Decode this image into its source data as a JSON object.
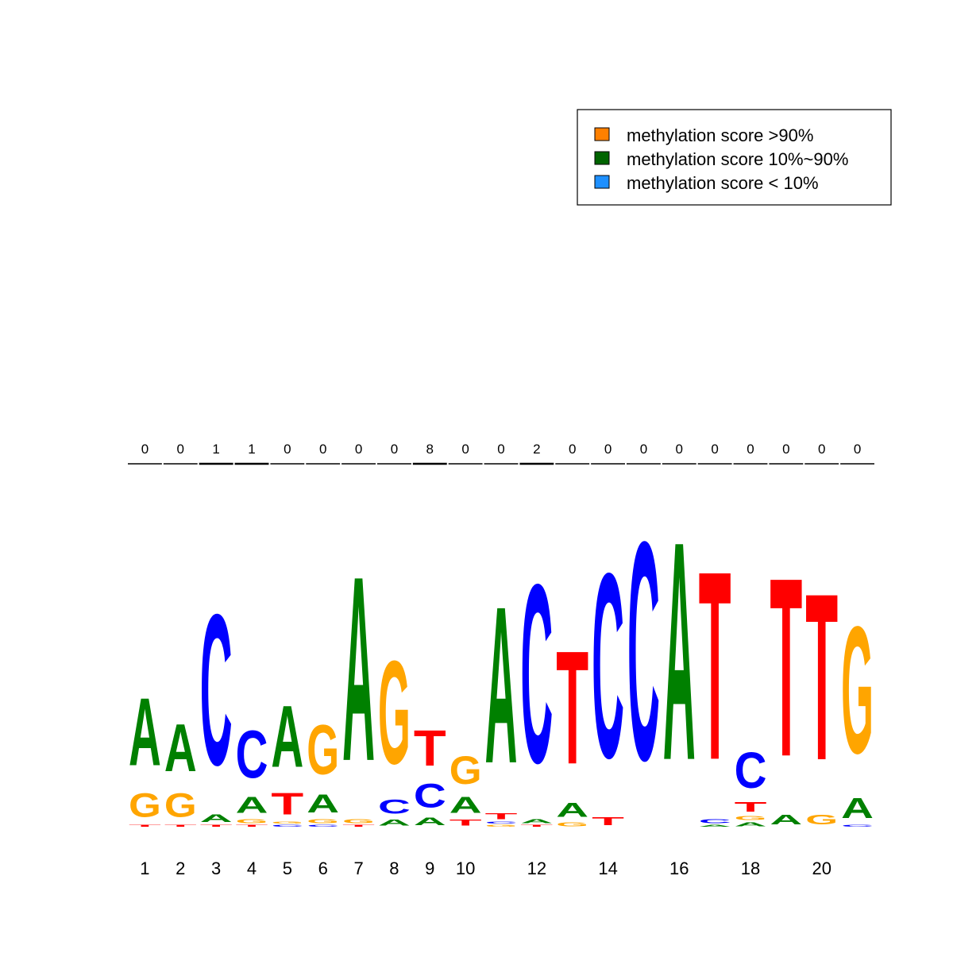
{
  "legend": {
    "items": [
      {
        "label": "methylation score >90%",
        "color": "#ff8000"
      },
      {
        "label": "methylation score 10%~90%",
        "color": "#006400"
      },
      {
        "label": "methylation score < 10%",
        "color": "#1e90ff"
      }
    ]
  },
  "letter_colors": {
    "A": "#008000",
    "C": "#0000ff",
    "G": "#ffa500",
    "T": "#ff0000"
  },
  "chart_data": {
    "type": "sequence-logo",
    "title": "",
    "xlabel": "",
    "ylabel": "",
    "x_tick_labels": [
      "1",
      "2",
      "3",
      "4",
      "5",
      "6",
      "7",
      "8",
      "9",
      "10",
      "",
      "12",
      "",
      "14",
      "",
      "16",
      "",
      "18",
      "",
      "20",
      ""
    ],
    "methylation_counts": [
      "0",
      "0",
      "1",
      "1",
      "0",
      "0",
      "0",
      "0",
      "8",
      "0",
      "0",
      "2",
      "0",
      "0",
      "0",
      "0",
      "0",
      "0",
      "0",
      "0",
      "0"
    ],
    "positions": [
      [
        {
          "letter": "T",
          "height": 0.01
        },
        {
          "letter": "G",
          "height": 0.12
        },
        {
          "letter": "A",
          "height": 0.34
        }
      ],
      [
        {
          "letter": "T",
          "height": 0.01
        },
        {
          "letter": "G",
          "height": 0.12
        },
        {
          "letter": "A",
          "height": 0.24
        }
      ],
      [
        {
          "letter": "T",
          "height": 0.01
        },
        {
          "letter": "A",
          "height": 0.04
        },
        {
          "letter": "C",
          "height": 0.76
        }
      ],
      [
        {
          "letter": "T",
          "height": 0.01
        },
        {
          "letter": "G",
          "height": 0.02
        },
        {
          "letter": "A",
          "height": 0.08
        },
        {
          "letter": "C",
          "height": 0.24
        }
      ],
      [
        {
          "letter": "C",
          "height": 0.01
        },
        {
          "letter": "G",
          "height": 0.01
        },
        {
          "letter": "T",
          "height": 0.11
        },
        {
          "letter": "A",
          "height": 0.31
        }
      ],
      [
        {
          "letter": "C",
          "height": 0.01
        },
        {
          "letter": "G",
          "height": 0.02
        },
        {
          "letter": "A",
          "height": 0.09
        },
        {
          "letter": "G",
          "height": 0.25
        }
      ],
      [
        {
          "letter": "T",
          "height": 0.01
        },
        {
          "letter": "G",
          "height": 0.02
        },
        {
          "letter": "A",
          "height": 0.93
        }
      ],
      [
        {
          "letter": "A",
          "height": 0.03
        },
        {
          "letter": "C",
          "height": 0.07
        },
        {
          "letter": "G",
          "height": 0.52
        }
      ],
      [
        {
          "letter": "A",
          "height": 0.04
        },
        {
          "letter": "C",
          "height": 0.12
        },
        {
          "letter": "T",
          "height": 0.18
        }
      ],
      [
        {
          "letter": "T",
          "height": 0.03
        },
        {
          "letter": "A",
          "height": 0.08
        },
        {
          "letter": "G",
          "height": 0.14
        }
      ],
      [
        {
          "letter": "G",
          "height": 0.01
        },
        {
          "letter": "C",
          "height": 0.01
        },
        {
          "letter": "T",
          "height": 0.03
        },
        {
          "letter": "A",
          "height": 0.79
        }
      ],
      [
        {
          "letter": "T",
          "height": 0.01
        },
        {
          "letter": "A",
          "height": 0.02
        },
        {
          "letter": "C",
          "height": 0.9
        }
      ],
      [
        {
          "letter": "G",
          "height": 0.02
        },
        {
          "letter": "A",
          "height": 0.07
        },
        {
          "letter": "T",
          "height": 0.57
        }
      ],
      [
        {
          "letter": "T",
          "height": 0.04
        },
        {
          "letter": "C",
          "height": 0.93
        }
      ],
      [
        {
          "letter": "C",
          "height": 1.1
        }
      ],
      [
        {
          "letter": "A",
          "height": 1.1
        }
      ],
      [
        {
          "letter": "A",
          "height": 0.01
        },
        {
          "letter": "C",
          "height": 0.02
        },
        {
          "letter": "T",
          "height": 0.95
        }
      ],
      [
        {
          "letter": "A",
          "height": 0.02
        },
        {
          "letter": "G",
          "height": 0.02
        },
        {
          "letter": "T",
          "height": 0.05
        },
        {
          "letter": "C",
          "height": 0.18
        }
      ],
      [
        {
          "letter": "A",
          "height": 0.05
        },
        {
          "letter": "T",
          "height": 0.9
        }
      ],
      [
        {
          "letter": "G",
          "height": 0.05
        },
        {
          "letter": "T",
          "height": 0.84
        }
      ],
      [
        {
          "letter": "C",
          "height": 0.01
        },
        {
          "letter": "A",
          "height": 0.1
        },
        {
          "letter": "G",
          "height": 0.64
        }
      ]
    ]
  }
}
